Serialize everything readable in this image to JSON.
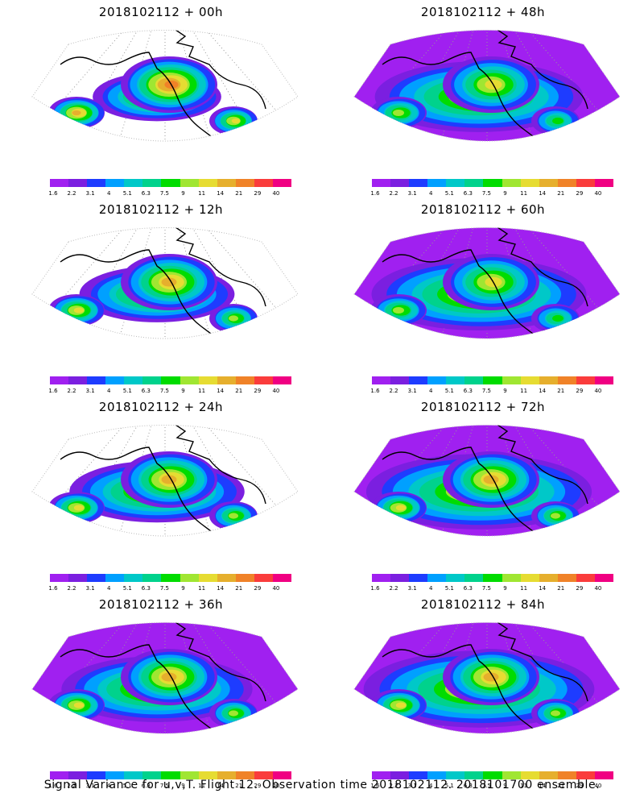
{
  "panels": [
    {
      "title": "2018102112 + 00h",
      "spread": 0.15,
      "peak": 0.95
    },
    {
      "title": "2018102112 + 48h",
      "spread": 0.75,
      "peak": 0.75
    },
    {
      "title": "2018102112 + 12h",
      "spread": 0.35,
      "peak": 0.85
    },
    {
      "title": "2018102112 + 60h",
      "spread": 0.8,
      "peak": 0.75
    },
    {
      "title": "2018102112 + 24h",
      "spread": 0.5,
      "peak": 0.8
    },
    {
      "title": "2018102112 + 72h",
      "spread": 0.88,
      "peak": 0.8
    },
    {
      "title": "2018102112 + 36h",
      "spread": 0.62,
      "peak": 0.8
    },
    {
      "title": "2018102112 + 84h",
      "spread": 0.92,
      "peak": 0.8
    }
  ],
  "colorbar": {
    "colors": [
      "#a020f0",
      "#7b1fe0",
      "#1e3cff",
      "#00a0ff",
      "#00c8c8",
      "#00d28c",
      "#00dc00",
      "#a0e632",
      "#e6dc32",
      "#e6af2d",
      "#f08228",
      "#fa3c3c",
      "#f00082"
    ],
    "labels": [
      "1.6",
      "2.2",
      "3.1",
      "4",
      "5.1",
      "6.3",
      "7.5",
      "9",
      "11",
      "14",
      "21",
      "29",
      "40"
    ]
  },
  "caption": "Signal Variance for u,v,T. Flight 12. Observation time 2018102112. 2018101700 ensemble."
}
